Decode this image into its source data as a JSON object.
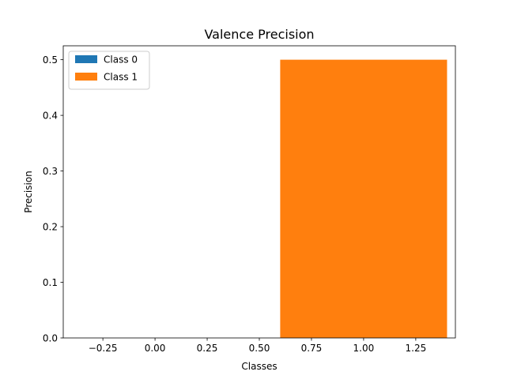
{
  "chart_data": {
    "type": "bar",
    "title": "Valence Precision",
    "xlabel": "Classes",
    "ylabel": "Precision",
    "xlim": [
      -0.44,
      1.44
    ],
    "ylim": [
      0,
      0.525
    ],
    "x_ticks": [
      -0.25,
      0.0,
      0.25,
      0.5,
      0.75,
      1.0,
      1.25
    ],
    "x_tick_labels": [
      "−0.25",
      "0.00",
      "0.25",
      "0.50",
      "0.75",
      "1.00",
      "1.25"
    ],
    "y_ticks": [
      0.0,
      0.1,
      0.2,
      0.3,
      0.4,
      0.5
    ],
    "y_tick_labels": [
      "0.0",
      "0.1",
      "0.2",
      "0.3",
      "0.4",
      "0.5"
    ],
    "bar_width": 0.8,
    "grid": false,
    "legend_position": "upper-left",
    "series": [
      {
        "name": "Class 0",
        "x": 0,
        "value": 0.0,
        "color": "#1f77b4"
      },
      {
        "name": "Class 1",
        "x": 1,
        "value": 0.5,
        "color": "#ff7f0e"
      }
    ]
  }
}
